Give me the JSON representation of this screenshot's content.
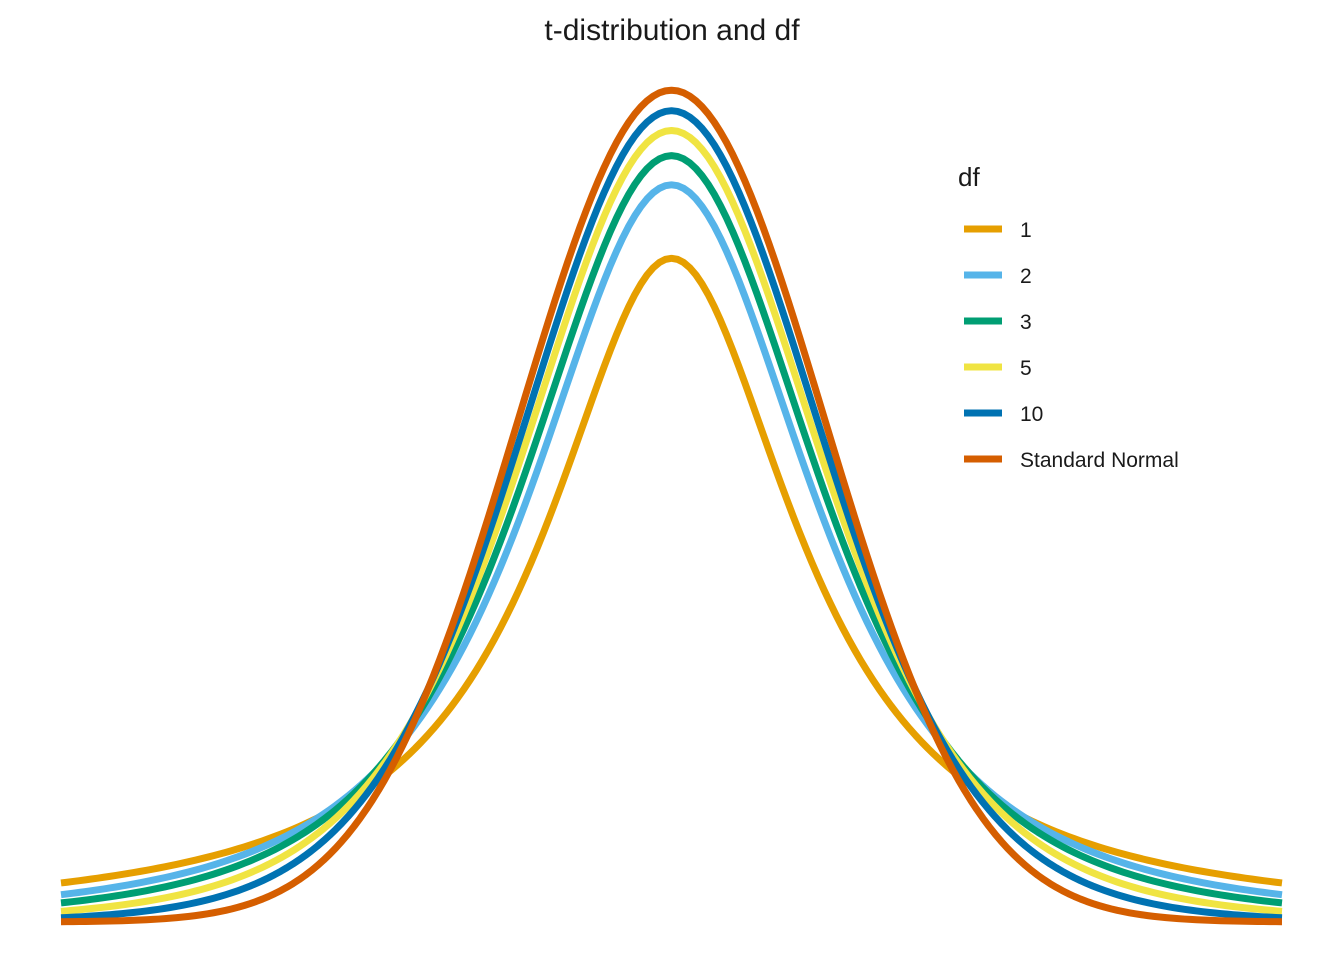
{
  "chart_data": {
    "type": "line",
    "title": "t-distribution and df",
    "xlabel": "",
    "ylabel": "",
    "xlim": [
      -4,
      4
    ],
    "ylim": [
      0,
      0.4
    ],
    "grid": false,
    "axes_visible": false,
    "legend": {
      "title": "df",
      "placement": "top-right"
    },
    "series": [
      {
        "name": "1",
        "df": 1,
        "color": "#E69F00"
      },
      {
        "name": "2",
        "df": 2,
        "color": "#56B4E9"
      },
      {
        "name": "3",
        "df": 3,
        "color": "#009E73"
      },
      {
        "name": "5",
        "df": 5,
        "color": "#F0E442"
      },
      {
        "name": "10",
        "df": 10,
        "color": "#0072B2"
      },
      {
        "name": "Standard Normal",
        "df": null,
        "color": "#D55E00"
      }
    ]
  }
}
